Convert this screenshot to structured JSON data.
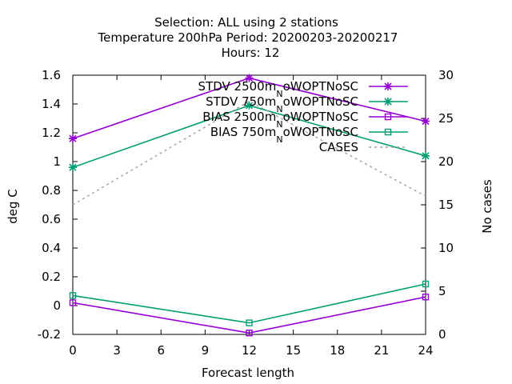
{
  "chart_data": {
    "type": "line",
    "title_lines": [
      "Selection: ALL using     2 stations",
      "Temperature 200hPa    Period: 20200203-20200217",
      "Hours:  12"
    ],
    "xlabel": "Forecast length",
    "ylabel": "deg C",
    "y2label": "No cases",
    "xlim": [
      0,
      24
    ],
    "ylim": [
      -0.2,
      1.6
    ],
    "y2lim": [
      0,
      30
    ],
    "xticks": [
      "0",
      "3",
      "6",
      "9",
      "12",
      "15",
      "18",
      "21",
      "24"
    ],
    "yticks": [
      "-0.2",
      "0",
      "0.2",
      "0.4",
      "0.6",
      "0.8",
      "1",
      "1.2",
      "1.4",
      "1.6"
    ],
    "y2ticks": [
      "0",
      "5",
      "10",
      "15",
      "20",
      "25",
      "30"
    ],
    "x": [
      0,
      12,
      24
    ],
    "series": [
      {
        "name": "STDV 2500m",
        "sub": "N",
        "suffix": "oWOPTNoSC",
        "axis": "y",
        "color": "#9400d3",
        "marker": "star",
        "values": [
          1.16,
          1.58,
          1.28
        ]
      },
      {
        "name": "STDV 750m",
        "sub": "N",
        "suffix": "oWOPTNoSC",
        "axis": "y",
        "color": "#009e73",
        "marker": "star",
        "values": [
          0.96,
          1.39,
          1.04
        ]
      },
      {
        "name": "BIAS 2500m",
        "sub": "N",
        "suffix": "oWOPTNoSC",
        "axis": "y",
        "color": "#9400d3",
        "marker": "square",
        "values": [
          0.02,
          -0.19,
          0.06
        ]
      },
      {
        "name": "BIAS 750m",
        "sub": "N",
        "suffix": "oWOPTNoSC",
        "axis": "y",
        "color": "#009e73",
        "marker": "square",
        "values": [
          0.07,
          -0.12,
          0.15
        ]
      },
      {
        "name": "CASES",
        "sub": "",
        "suffix": "",
        "axis": "y2",
        "color": "#a0a0a0",
        "marker": "none",
        "dashed": true,
        "values": [
          15,
          27,
          16
        ]
      }
    ],
    "legend_position": "top-right",
    "grid": false
  }
}
